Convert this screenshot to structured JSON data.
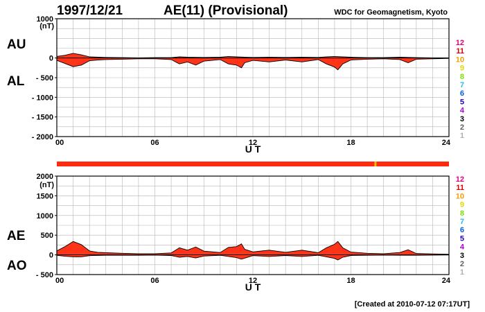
{
  "header": {
    "date": "1997/12/21",
    "title": "AE(11) (Provisional)",
    "source": "WDC for Geomagnetism, Kyoto",
    "created": "[Created at 2010-07-12 07:17UT]"
  },
  "station_index_labels": [
    "12",
    "11",
    "10",
    "9",
    "8",
    "7",
    "6",
    "5",
    "4",
    "3",
    "2",
    "1"
  ],
  "station_index_colors": [
    "#e0007a",
    "#e00000",
    "#f0a000",
    "#e0d800",
    "#80e000",
    "#20c0e0",
    "#0060e0",
    "#2000c0",
    "#b000e0",
    "#000000",
    "#606060",
    "#b0b0b0"
  ],
  "chart_data": [
    {
      "type": "area",
      "panel": "top",
      "xlabel": "U T",
      "unit": "(nT)",
      "side_labels": [
        "AU",
        "AL"
      ],
      "ylim": [
        -2000,
        1000
      ],
      "yticks": [
        1000,
        0,
        -500,
        -1000,
        -1500,
        -2000
      ],
      "ytick_labels": [
        "1000",
        "0",
        "- 500",
        "- 1000",
        "- 1500",
        "- 2000"
      ],
      "xlim": [
        0,
        24
      ],
      "xticks": [
        0,
        6,
        12,
        18,
        24
      ],
      "xtick_labels": [
        "00",
        "06",
        "12",
        "18",
        "24"
      ],
      "grid": true,
      "fill_color": "#ff3318",
      "series": [
        {
          "name": "AU",
          "x": [
            0,
            0.5,
            1,
            1.5,
            2,
            3,
            4,
            5,
            6,
            7,
            7.5,
            8,
            9,
            10,
            10.5,
            11,
            11.5,
            12,
            13,
            14,
            15,
            16,
            16.5,
            17,
            17.5,
            18,
            19,
            20,
            21,
            22,
            23,
            24
          ],
          "values": [
            40,
            70,
            120,
            80,
            30,
            15,
            10,
            5,
            10,
            10,
            30,
            20,
            15,
            20,
            40,
            30,
            20,
            15,
            20,
            15,
            20,
            15,
            30,
            40,
            30,
            20,
            10,
            10,
            20,
            10,
            5,
            5
          ]
        },
        {
          "name": "AL",
          "x": [
            0,
            0.5,
            1,
            1.5,
            2,
            2.5,
            3,
            4,
            5,
            6,
            7,
            7.5,
            8,
            8.5,
            9,
            10,
            10.5,
            11,
            11.3,
            11.5,
            12,
            13,
            14,
            15,
            16,
            16.5,
            17,
            17.2,
            17.5,
            18,
            19,
            20,
            21,
            21.5,
            22,
            23,
            24
          ],
          "values": [
            -60,
            -140,
            -220,
            -180,
            -70,
            -50,
            -40,
            -30,
            -20,
            -20,
            -40,
            -150,
            -100,
            -180,
            -80,
            -40,
            -150,
            -180,
            -250,
            -120,
            -60,
            -100,
            -50,
            -100,
            -40,
            -150,
            -230,
            -300,
            -150,
            -50,
            -30,
            -20,
            -40,
            -120,
            -30,
            -20,
            -10
          ]
        }
      ]
    },
    {
      "type": "area",
      "panel": "bottom",
      "xlabel": "U T",
      "unit": "(nT)",
      "side_labels": [
        "AE",
        "AO"
      ],
      "ylim": [
        -500,
        2000
      ],
      "yticks": [
        2000,
        1500,
        1000,
        500,
        0,
        -500
      ],
      "ytick_labels": [
        "2000",
        "1500",
        "1000",
        "500",
        "0",
        "- 500"
      ],
      "xlim": [
        0,
        24
      ],
      "xticks": [
        0,
        6,
        12,
        18,
        24
      ],
      "xtick_labels": [
        "00",
        "06",
        "12",
        "18",
        "24"
      ],
      "grid": true,
      "fill_color": "#ff3318",
      "series": [
        {
          "name": "AE",
          "x": [
            0,
            0.5,
            1,
            1.5,
            2,
            2.5,
            3,
            4,
            5,
            6,
            7,
            7.5,
            8,
            8.5,
            9,
            10,
            10.5,
            11,
            11.3,
            11.5,
            12,
            13,
            14,
            15,
            16,
            16.5,
            17,
            17.2,
            17.5,
            18,
            19,
            20,
            21,
            21.5,
            22,
            23,
            24
          ],
          "values": [
            100,
            210,
            340,
            260,
            100,
            65,
            55,
            40,
            30,
            30,
            50,
            180,
            120,
            200,
            95,
            60,
            190,
            210,
            280,
            140,
            75,
            120,
            65,
            120,
            55,
            180,
            270,
            340,
            180,
            70,
            40,
            30,
            60,
            130,
            35,
            25,
            15
          ]
        },
        {
          "name": "AO",
          "x": [
            0,
            0.5,
            1,
            1.5,
            2,
            3,
            4,
            5,
            6,
            7,
            7.5,
            8,
            8.5,
            9,
            10,
            11,
            11.3,
            12,
            13,
            14,
            15,
            16,
            17,
            17.2,
            17.5,
            18,
            19,
            20,
            21,
            22,
            23,
            24
          ],
          "values": [
            -10,
            -35,
            -50,
            -50,
            -20,
            -10,
            -10,
            -10,
            -5,
            -15,
            -60,
            -40,
            -80,
            -30,
            -10,
            -70,
            -110,
            -20,
            -40,
            -15,
            -40,
            -10,
            -90,
            -130,
            -60,
            -15,
            -10,
            -5,
            -10,
            -10,
            -5,
            -2
          ]
        }
      ]
    }
  ],
  "coverage_bar": {
    "color": "#ff2a10",
    "marker_hour": 19.5,
    "marker_color": "#e8c000"
  }
}
